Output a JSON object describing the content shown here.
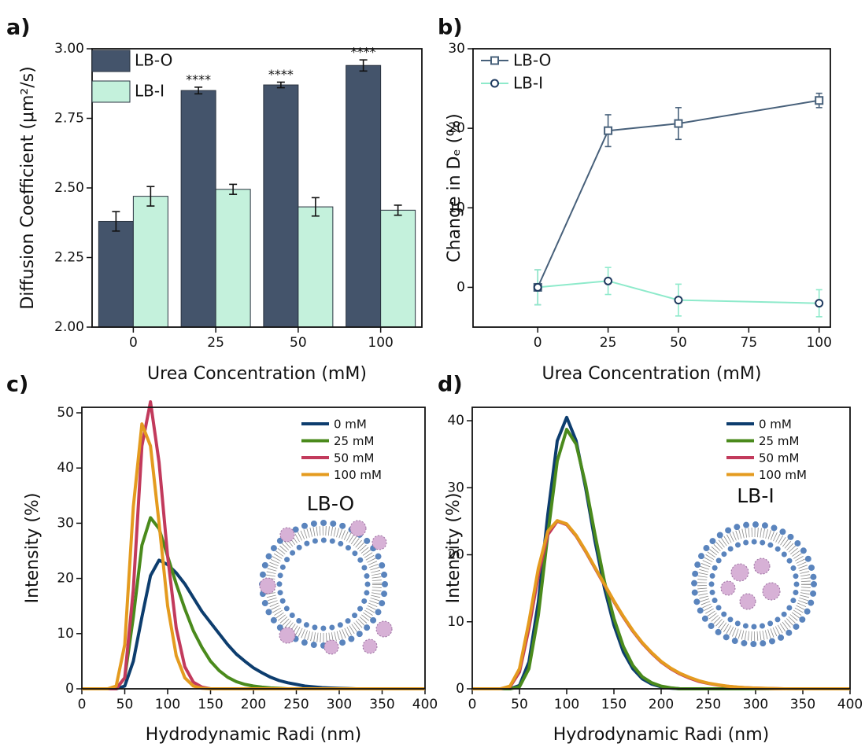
{
  "chart_data": [
    {
      "type": "bar",
      "panel_label": "a)",
      "xlabel": "Urea Concentration (mM)",
      "ylabel": "Diffusion Coefficient (μm²/s)",
      "categories": [
        "0",
        "25",
        "50",
        "100"
      ],
      "series": [
        {
          "name": "LB-O",
          "color": "#44546b",
          "values": [
            2.38,
            2.85,
            2.87,
            2.94
          ],
          "errors": [
            0.035,
            0.012,
            0.01,
            0.02
          ]
        },
        {
          "name": "LB-I",
          "color": "#c4f1dc",
          "values": [
            2.47,
            2.495,
            2.432,
            2.42
          ],
          "errors": [
            0.035,
            0.018,
            0.033,
            0.018
          ]
        }
      ],
      "annotations": [
        {
          "text": "****",
          "series": "LB-O",
          "category": "25"
        },
        {
          "text": "****",
          "series": "LB-O",
          "category": "50"
        },
        {
          "text": "****",
          "series": "LB-O",
          "category": "100"
        }
      ],
      "ylim": [
        2,
        3
      ],
      "yticks": [
        {
          "value": 2,
          "label": "2.00"
        },
        {
          "value": 2.25,
          "label": "2.25"
        },
        {
          "value": 2.5,
          "label": "2.50"
        },
        {
          "value": 2.75,
          "label": "2.75"
        },
        {
          "value": 3,
          "label": "3.00"
        }
      ],
      "legend": "upper left"
    },
    {
      "type": "line",
      "panel_label": "b)",
      "xlabel": "Urea Concentration (mM)",
      "ylabel": "Change in Dₑ (%)",
      "x": [
        0,
        25,
        50,
        100
      ],
      "series": [
        {
          "name": "LB-O",
          "color": "#47607a",
          "marker": "square",
          "marker_edge": "#47607a",
          "values": [
            0,
            19.7,
            20.6,
            23.5
          ],
          "errors": [
            2.2,
            2.0,
            2.0,
            0.9
          ]
        },
        {
          "name": "LB-I",
          "color": "#8eeacb",
          "marker": "circle",
          "marker_edge": "#1f3a5f",
          "values": [
            0,
            0.8,
            -1.6,
            -2.0
          ],
          "errors": [
            2.2,
            1.7,
            2.0,
            1.7
          ]
        }
      ],
      "xlim": [
        -23,
        104
      ],
      "xticks": [
        0,
        25,
        50,
        75,
        100
      ],
      "ylim": [
        -5,
        30
      ],
      "yticks": [
        0,
        10,
        20,
        30
      ],
      "legend": "upper left"
    },
    {
      "type": "line",
      "panel_label": "c)",
      "xlabel": "Hydrodynamic Radi (nm)",
      "ylabel": "Intensity (%)",
      "inset_label": "LB-O",
      "x": [
        0,
        30,
        40,
        50,
        60,
        70,
        80,
        90,
        100,
        110,
        120,
        130,
        140,
        150,
        160,
        170,
        180,
        190,
        200,
        210,
        220,
        230,
        240,
        250,
        260,
        270,
        280,
        290,
        300,
        310,
        320,
        330,
        400
      ],
      "series": [
        {
          "name": "0 mM",
          "color": "#0d3d6e",
          "values": [
            0,
            0,
            0,
            0.5,
            5,
            13,
            20.5,
            23.3,
            22.5,
            21,
            19,
            16.5,
            14,
            12,
            10,
            8,
            6.3,
            5,
            3.8,
            2.9,
            2.1,
            1.5,
            1.1,
            0.8,
            0.5,
            0.35,
            0.22,
            0.14,
            0.08,
            0.05,
            0,
            0,
            0
          ]
        },
        {
          "name": "25 mM",
          "color": "#4a8a1c",
          "values": [
            0,
            0,
            0,
            2,
            13,
            26,
            31,
            29,
            24,
            19,
            14.5,
            10.5,
            7.5,
            5,
            3.3,
            2.1,
            1.3,
            0.8,
            0.5,
            0.3,
            0.15,
            0.08,
            0,
            0,
            0,
            0,
            0,
            0,
            0,
            0,
            0,
            0,
            0
          ]
        },
        {
          "name": "50 mM",
          "color": "#c23a5c",
          "values": [
            0,
            0,
            0,
            2,
            18,
            44,
            52,
            41,
            24,
            11,
            4,
            1.2,
            0.3,
            0,
            0,
            0,
            0,
            0,
            0,
            0,
            0,
            0,
            0,
            0,
            0,
            0,
            0,
            0,
            0,
            0,
            0,
            0,
            0
          ]
        },
        {
          "name": "100 mM",
          "color": "#e49b1f",
          "values": [
            0,
            0,
            0.5,
            8,
            33,
            48,
            44,
            30,
            15,
            6,
            2,
            0.5,
            0.1,
            0,
            0,
            0,
            0,
            0,
            0,
            0,
            0,
            0,
            0,
            0,
            0,
            0,
            0,
            0,
            0,
            0,
            0,
            0,
            0
          ]
        }
      ],
      "xlim": [
        0,
        400
      ],
      "xticks": [
        0,
        50,
        100,
        150,
        200,
        250,
        300,
        350,
        400
      ],
      "ylim": [
        0,
        51
      ],
      "yticks": [
        0,
        10,
        20,
        30,
        40,
        50
      ],
      "legend": "upper right"
    },
    {
      "type": "line",
      "panel_label": "d)",
      "xlabel": "Hydrodynamic Radi (nm)",
      "ylabel": "Intensity (%)",
      "inset_label": "LB-I",
      "x": [
        0,
        30,
        40,
        50,
        60,
        70,
        80,
        90,
        100,
        110,
        120,
        130,
        140,
        150,
        160,
        170,
        180,
        190,
        200,
        210,
        220,
        230,
        240,
        250,
        260,
        270,
        280,
        290,
        300,
        310,
        320,
        330,
        400
      ],
      "series": [
        {
          "name": "0 mM",
          "color": "#0d3d6e",
          "values": [
            0,
            0,
            0,
            0.5,
            4,
            13,
            26,
            37,
            40.5,
            37,
            30,
            22,
            15,
            9.5,
            5.5,
            3,
            1.5,
            0.7,
            0.3,
            0.1,
            0,
            0,
            0,
            0,
            0,
            0,
            0,
            0,
            0,
            0,
            0,
            0,
            0
          ]
        },
        {
          "name": "25 mM",
          "color": "#4a8a1c",
          "values": [
            0,
            0,
            0,
            0.3,
            3,
            11,
            23,
            34,
            38.7,
            36.5,
            30.5,
            23,
            16,
            10.5,
            6.3,
            3.5,
            1.8,
            0.9,
            0.4,
            0.15,
            0,
            0,
            0,
            0,
            0,
            0,
            0,
            0,
            0,
            0,
            0,
            0,
            0
          ]
        },
        {
          "name": "50 mM",
          "color": "#c23a5c",
          "values": [
            0,
            0,
            0.3,
            2.5,
            9,
            17,
            23,
            25,
            24.5,
            22.8,
            20.5,
            18,
            15.5,
            13,
            10.7,
            8.6,
            6.8,
            5.3,
            4,
            3,
            2.2,
            1.6,
            1.1,
            0.8,
            0.55,
            0.37,
            0.25,
            0.16,
            0.1,
            0.06,
            0.03,
            0,
            0
          ]
        },
        {
          "name": "100 mM",
          "color": "#e49b1f",
          "values": [
            0,
            0,
            0.4,
            3,
            10,
            18,
            23.5,
            25.1,
            24.6,
            22.9,
            20.6,
            18.1,
            15.6,
            13.1,
            10.8,
            8.7,
            6.9,
            5.4,
            4.1,
            3.1,
            2.3,
            1.7,
            1.2,
            0.85,
            0.6,
            0.4,
            0.27,
            0.17,
            0.11,
            0.07,
            0.04,
            0,
            0
          ]
        }
      ],
      "xlim": [
        0,
        400
      ],
      "xticks": [
        0,
        50,
        100,
        150,
        200,
        250,
        300,
        350,
        400
      ],
      "ylim": [
        0,
        42
      ],
      "yticks": [
        0,
        10,
        20,
        30,
        40
      ],
      "legend": "upper right"
    }
  ]
}
